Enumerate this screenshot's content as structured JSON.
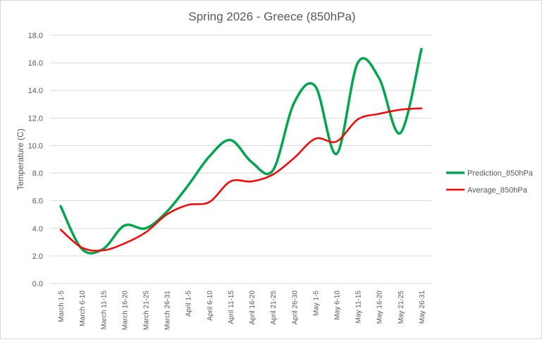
{
  "chart_data": {
    "type": "line",
    "title": "Spring 2026 - Greece (850hPa)",
    "xlabel": "",
    "ylabel": "Temperature (C)",
    "ylim": [
      0,
      18
    ],
    "yticks": [
      "0.0",
      "2.0",
      "4.0",
      "6.0",
      "8.0",
      "10.0",
      "12.0",
      "14.0",
      "16.0",
      "18.0"
    ],
    "grid": true,
    "legend_position": "right",
    "categories": [
      "March 1-5",
      "March 6-10",
      "March 11-15",
      "March 16-20",
      "March 21-25",
      "March 26-31",
      "April 1-5",
      "April 6-10",
      "April 11-15",
      "April 16-20",
      "April 21-25",
      "April 26-30",
      "May 1-5",
      "May 6-10",
      "May 11-15",
      "May 16-20",
      "May 21-25",
      "May 26-31"
    ],
    "series": [
      {
        "name": "Prediction_850hPa",
        "color": "#00A550",
        "values": [
          5.6,
          2.5,
          2.5,
          4.2,
          4.0,
          5.2,
          7.1,
          9.2,
          10.4,
          8.8,
          8.2,
          13.1,
          14.3,
          9.4,
          16.0,
          14.9,
          10.9,
          17.0
        ]
      },
      {
        "name": "Average_850hPa",
        "color": "#FF0000",
        "values": [
          3.9,
          2.6,
          2.4,
          2.9,
          3.7,
          5.0,
          5.7,
          5.9,
          7.4,
          7.4,
          7.9,
          9.1,
          10.5,
          10.3,
          11.9,
          12.3,
          12.6,
          12.7
        ]
      }
    ]
  }
}
